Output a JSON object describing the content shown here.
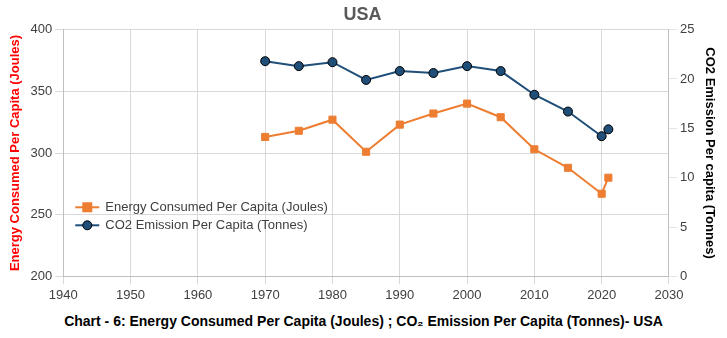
{
  "chart_data": {
    "type": "line",
    "title": "USA",
    "caption": "Chart - 6: Energy Consumed Per Capita (Joules) ; CO₂ Emission Per Capita (Tonnes)- USA",
    "y_label": "Energy Consumed Per Capita (Joules)",
    "y2_label": "CO2 Emission Per capita (Tonnes)",
    "x": [
      1970,
      1975,
      1980,
      1985,
      1990,
      1995,
      2000,
      2005,
      2010,
      2015,
      2020,
      2021
    ],
    "series": [
      {
        "name": "Energy Consumed Per Capita (Joules)",
        "color": "#ed7d31",
        "marker": "square",
        "axis": "y",
        "values": [
          313,
          318,
          327,
          301,
          323,
          332,
          340,
          329,
          303,
          288,
          267,
          280
        ]
      },
      {
        "name": "CO2 Emission Per Capita (Tonnes)",
        "color": "#1f4e79",
        "marker": "circle",
        "axis": "y2",
        "values": [
          21.8,
          21.3,
          21.7,
          19.9,
          20.8,
          20.6,
          21.3,
          20.8,
          18.4,
          16.7,
          14.2,
          14.9
        ]
      }
    ],
    "xlim": [
      1940,
      2030
    ],
    "xticks": [
      1940,
      1950,
      1960,
      1970,
      1980,
      1990,
      2000,
      2010,
      2020,
      2030
    ],
    "ylim": [
      200,
      400
    ],
    "yticks": [
      200,
      250,
      300,
      350,
      400
    ],
    "y2lim": [
      0,
      25
    ],
    "y2ticks": [
      0,
      5,
      10,
      15,
      20,
      25
    ],
    "grid": true,
    "legend": "left"
  }
}
